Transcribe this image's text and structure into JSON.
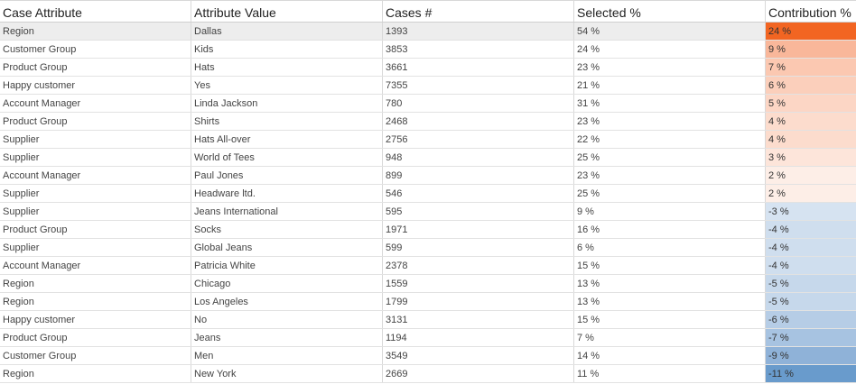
{
  "columns": [
    "Case Attribute",
    "Attribute Value",
    "Cases #",
    "Selected %",
    "Contribution %"
  ],
  "rows": [
    {
      "attribute": "Region",
      "value": "Dallas",
      "cases": "1393",
      "selected": "54 %",
      "contribution": "24 %",
      "color": "#f26522",
      "selected_row": true
    },
    {
      "attribute": "Customer Group",
      "value": "Kids",
      "cases": "3853",
      "selected": "24 %",
      "contribution": "9 %",
      "color": "#f9b79a"
    },
    {
      "attribute": "Product Group",
      "value": "Hats",
      "cases": "3661",
      "selected": "23 %",
      "contribution": "7 %",
      "color": "#fbc8b1"
    },
    {
      "attribute": "Happy customer",
      "value": "Yes",
      "cases": "7355",
      "selected": "21 %",
      "contribution": "6 %",
      "color": "#fbcfbb"
    },
    {
      "attribute": "Account Manager",
      "value": "Linda Jackson",
      "cases": "780",
      "selected": "31 %",
      "contribution": "5 %",
      "color": "#fcd6c5"
    },
    {
      "attribute": "Product Group",
      "value": "Shirts",
      "cases": "2468",
      "selected": "23 %",
      "contribution": "4 %",
      "color": "#fcdccd"
    },
    {
      "attribute": "Supplier",
      "value": "Hats All-over",
      "cases": "2756",
      "selected": "22 %",
      "contribution": "4 %",
      "color": "#fcdccd"
    },
    {
      "attribute": "Supplier",
      "value": "World of Tees",
      "cases": "948",
      "selected": "25 %",
      "contribution": "3 %",
      "color": "#fde5da"
    },
    {
      "attribute": "Account Manager",
      "value": "Paul Jones",
      "cases": "899",
      "selected": "23 %",
      "contribution": "2 %",
      "color": "#fdeee7"
    },
    {
      "attribute": "Supplier",
      "value": "Headware ltd.",
      "cases": "546",
      "selected": "25 %",
      "contribution": "2 %",
      "color": "#fdeee7"
    },
    {
      "attribute": "Supplier",
      "value": "Jeans International",
      "cases": "595",
      "selected": "9 %",
      "contribution": "-3 %",
      "color": "#d6e3f1"
    },
    {
      "attribute": "Product Group",
      "value": "Socks",
      "cases": "1971",
      "selected": "16 %",
      "contribution": "-4 %",
      "color": "#cfdeee"
    },
    {
      "attribute": "Supplier",
      "value": "Global Jeans",
      "cases": "599",
      "selected": "6 %",
      "contribution": "-4 %",
      "color": "#cfdeee"
    },
    {
      "attribute": "Account Manager",
      "value": "Patricia White",
      "cases": "2378",
      "selected": "15 %",
      "contribution": "-4 %",
      "color": "#cfdeee"
    },
    {
      "attribute": "Region",
      "value": "Chicago",
      "cases": "1559",
      "selected": "13 %",
      "contribution": "-5 %",
      "color": "#c6d8eb"
    },
    {
      "attribute": "Region",
      "value": "Los Angeles",
      "cases": "1799",
      "selected": "13 %",
      "contribution": "-5 %",
      "color": "#c6d8eb"
    },
    {
      "attribute": "Happy customer",
      "value": "No",
      "cases": "3131",
      "selected": "15 %",
      "contribution": "-6 %",
      "color": "#b6cde6"
    },
    {
      "attribute": "Product Group",
      "value": "Jeans",
      "cases": "1194",
      "selected": "7 %",
      "contribution": "-7 %",
      "color": "#a7c3e1"
    },
    {
      "attribute": "Customer Group",
      "value": "Men",
      "cases": "3549",
      "selected": "14 %",
      "contribution": "-9 %",
      "color": "#8fb2d8"
    },
    {
      "attribute": "Region",
      "value": "New York",
      "cases": "2669",
      "selected": "11 %",
      "contribution": "-11 %",
      "color": "#699bcc"
    }
  ]
}
